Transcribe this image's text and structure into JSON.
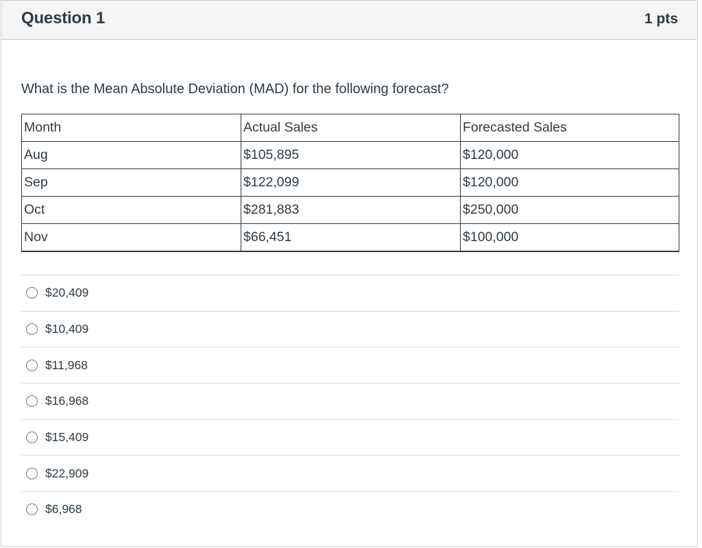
{
  "header": {
    "title": "Question 1",
    "points": "1 pts"
  },
  "question": {
    "text": "What is the Mean Absolute Deviation (MAD) for the following forecast?"
  },
  "table": {
    "columns": [
      "Month",
      "Actual Sales",
      "Forecasted Sales"
    ],
    "rows": [
      [
        "Aug",
        "$105,895",
        "$120,000"
      ],
      [
        "Sep",
        "$122,099",
        "$120,000"
      ],
      [
        "Oct",
        "$281,883",
        "$250,000"
      ],
      [
        "Nov",
        "$66,451",
        "$100,000"
      ]
    ]
  },
  "answers": [
    {
      "label": "$20,409",
      "selected": false
    },
    {
      "label": "$10,409",
      "selected": false
    },
    {
      "label": "$11,968",
      "selected": false
    },
    {
      "label": "$16,968",
      "selected": false
    },
    {
      "label": "$15,409",
      "selected": false
    },
    {
      "label": "$22,909",
      "selected": false
    },
    {
      "label": "$6,968",
      "selected": false
    }
  ]
}
